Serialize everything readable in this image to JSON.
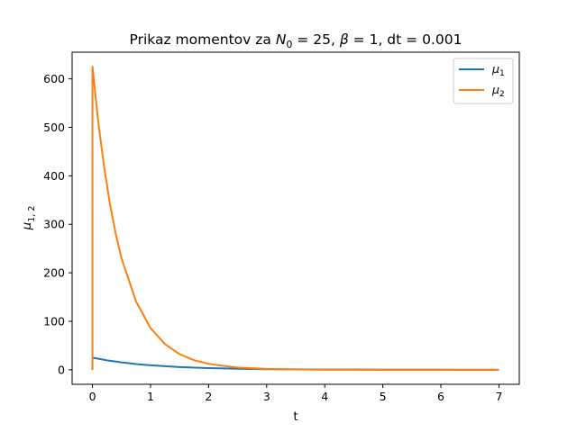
{
  "chart_data": {
    "type": "line",
    "title": {
      "prefix": "Prikaz momentov za ",
      "n_symbol": "N",
      "n_subscript": "0",
      "middle": " = 25, ",
      "beta_symbol": "β",
      "suffix": " = 1, dt = 0.001"
    },
    "xlabel": "t",
    "ylabel": {
      "symbol": "μ",
      "subscript": "1, 2"
    },
    "xlim": [
      -0.35,
      7.35
    ],
    "ylim": [
      -30,
      655
    ],
    "xticks": [
      0,
      1,
      2,
      3,
      4,
      5,
      6,
      7
    ],
    "yticks": [
      0,
      100,
      200,
      300,
      400,
      500,
      600
    ],
    "grid": false,
    "legend_position": "top-right",
    "series": [
      {
        "name": "μ1",
        "legend": {
          "symbol": "μ",
          "subscript": "1"
        },
        "color": "#1f77b4",
        "x": [
          0,
          0,
          0.25,
          0.5,
          0.75,
          1,
          1.5,
          2,
          2.5,
          3,
          3.5,
          4,
          4.5,
          5,
          5.5,
          6,
          6.5,
          7
        ],
        "y": [
          0,
          25,
          19.5,
          15.2,
          11.8,
          9.2,
          5.6,
          3.4,
          2.1,
          1.2,
          0.8,
          0.5,
          0.3,
          0.2,
          0.1,
          0.1,
          0,
          0
        ]
      },
      {
        "name": "μ2",
        "legend": {
          "symbol": "μ",
          "subscript": "2"
        },
        "color": "#ff7f0e",
        "x": [
          0,
          0,
          0.1,
          0.2,
          0.3,
          0.4,
          0.5,
          0.75,
          1,
          1.25,
          1.5,
          1.75,
          2,
          2.5,
          3,
          3.5,
          4,
          4.5,
          5,
          5.5,
          6,
          6.5,
          7
        ],
        "y": [
          0,
          625,
          511,
          419,
          343,
          281,
          230,
          141,
          86,
          52.7,
          32.2,
          19.7,
          12.1,
          4.5,
          1.7,
          0.6,
          0.2,
          0.1,
          0,
          0,
          0,
          0,
          0
        ]
      }
    ]
  }
}
